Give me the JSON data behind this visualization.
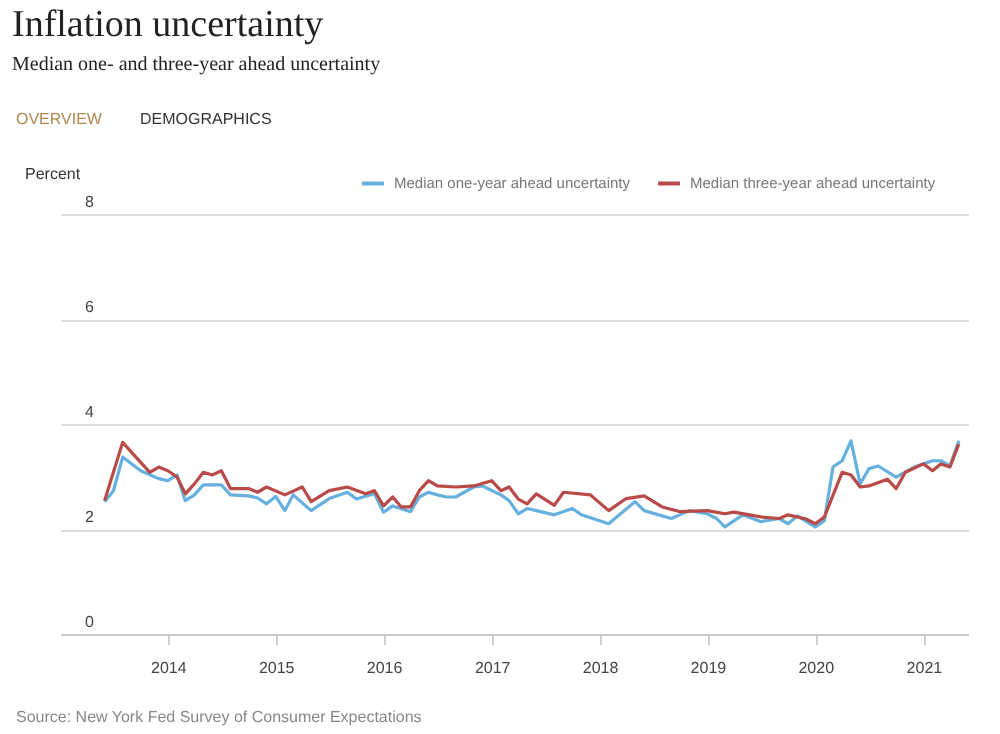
{
  "chart_data": {
    "type": "line",
    "title": "Inflation uncertainty",
    "subtitle": "Median one- and three-year ahead uncertainty",
    "ylabel": "Percent",
    "annotations": [
      "OVERVIEW",
      "DEMOGRAPHICS",
      "Source: New York Fed Survey of Consumer Expectations"
    ],
    "xlim": [
      "2013-01",
      "2021-06"
    ],
    "xticks": [
      "2014",
      "2015",
      "2016",
      "2017",
      "2018",
      "2019",
      "2020",
      "2021"
    ],
    "ylim": [
      0,
      8
    ],
    "yticks": [
      0,
      2,
      4,
      6,
      8
    ],
    "grid": "y",
    "legend": "top right",
    "series": [
      {
        "name": "Median one-year ahead uncertainty",
        "color": "#66b0e0",
        "x": [
          "2013-06",
          "2013-07",
          "2013-08",
          "2013-10",
          "2013-12",
          "2014-01",
          "2014-02",
          "2014-03",
          "2014-04",
          "2014-05",
          "2014-07",
          "2014-08",
          "2014-10",
          "2014-11",
          "2014-12",
          "2015-01",
          "2015-02",
          "2015-03",
          "2015-05",
          "2015-07",
          "2015-09",
          "2015-10",
          "2015-12",
          "2016-01",
          "2016-02",
          "2016-04",
          "2016-05",
          "2016-06",
          "2016-07",
          "2016-08",
          "2016-09",
          "2016-11",
          "2016-12",
          "2017-02",
          "2017-03",
          "2017-04",
          "2017-05",
          "2017-06",
          "2017-08",
          "2017-10",
          "2017-11",
          "2018-02",
          "2018-05",
          "2018-06",
          "2018-09",
          "2018-11",
          "2019-01",
          "2019-02",
          "2019-03",
          "2019-05",
          "2019-07",
          "2019-09",
          "2019-10",
          "2019-11",
          "2020-01",
          "2020-02",
          "2020-03",
          "2020-04",
          "2020-05",
          "2020-06",
          "2020-07",
          "2020-08",
          "2020-10",
          "2020-12",
          "2021-02",
          "2021-03",
          "2021-04",
          "2021-05"
        ],
        "values": [
          2.52,
          2.73,
          3.37,
          3.11,
          2.96,
          2.92,
          3.03,
          2.54,
          2.65,
          2.84,
          2.84,
          2.65,
          2.63,
          2.59,
          2.48,
          2.62,
          2.35,
          2.65,
          2.35,
          2.58,
          2.7,
          2.57,
          2.67,
          2.32,
          2.44,
          2.33,
          2.61,
          2.7,
          2.65,
          2.61,
          2.61,
          2.8,
          2.82,
          2.65,
          2.54,
          2.29,
          2.39,
          2.35,
          2.27,
          2.39,
          2.27,
          2.1,
          2.52,
          2.35,
          2.2,
          2.35,
          2.29,
          2.2,
          2.04,
          2.27,
          2.14,
          2.2,
          2.1,
          2.25,
          2.04,
          2.16,
          3.18,
          3.3,
          3.68,
          2.86,
          3.15,
          3.2,
          2.99,
          3.18,
          3.3,
          3.3,
          3.2,
          3.68
        ]
      },
      {
        "name": "Median three-year ahead uncertainty",
        "color": "#b94a48",
        "x": [
          "2013-06",
          "2013-08",
          "2013-10",
          "2013-11",
          "2013-12",
          "2014-01",
          "2014-02",
          "2014-03",
          "2014-04",
          "2014-05",
          "2014-06",
          "2014-07",
          "2014-08",
          "2014-10",
          "2014-11",
          "2014-12",
          "2015-02",
          "2015-04",
          "2015-05",
          "2015-07",
          "2015-09",
          "2015-11",
          "2015-12",
          "2016-01",
          "2016-02",
          "2016-03",
          "2016-04",
          "2016-05",
          "2016-06",
          "2016-07",
          "2016-09",
          "2016-11",
          "2017-01",
          "2017-02",
          "2017-03",
          "2017-04",
          "2017-05",
          "2017-06",
          "2017-08",
          "2017-09",
          "2017-12",
          "2018-02",
          "2018-04",
          "2018-06",
          "2018-08",
          "2018-10",
          "2019-01",
          "2019-03",
          "2019-04",
          "2019-07",
          "2019-09",
          "2019-10",
          "2019-12",
          "2020-01",
          "2020-02",
          "2020-04",
          "2020-05",
          "2020-06",
          "2020-07",
          "2020-09",
          "2020-10",
          "2020-11",
          "2021-01",
          "2021-02",
          "2021-03",
          "2021-04",
          "2021-05"
        ],
        "values": [
          2.54,
          3.65,
          3.27,
          3.08,
          3.18,
          3.11,
          2.99,
          2.67,
          2.86,
          3.08,
          3.03,
          3.11,
          2.77,
          2.77,
          2.7,
          2.8,
          2.65,
          2.8,
          2.52,
          2.73,
          2.8,
          2.67,
          2.73,
          2.44,
          2.61,
          2.42,
          2.42,
          2.73,
          2.92,
          2.82,
          2.8,
          2.82,
          2.92,
          2.73,
          2.8,
          2.57,
          2.48,
          2.67,
          2.45,
          2.7,
          2.65,
          2.35,
          2.58,
          2.63,
          2.42,
          2.33,
          2.35,
          2.29,
          2.32,
          2.23,
          2.2,
          2.27,
          2.19,
          2.1,
          2.23,
          3.08,
          3.03,
          2.8,
          2.82,
          2.95,
          2.77,
          3.08,
          3.24,
          3.11,
          3.24,
          3.18,
          3.62
        ]
      }
    ]
  }
}
